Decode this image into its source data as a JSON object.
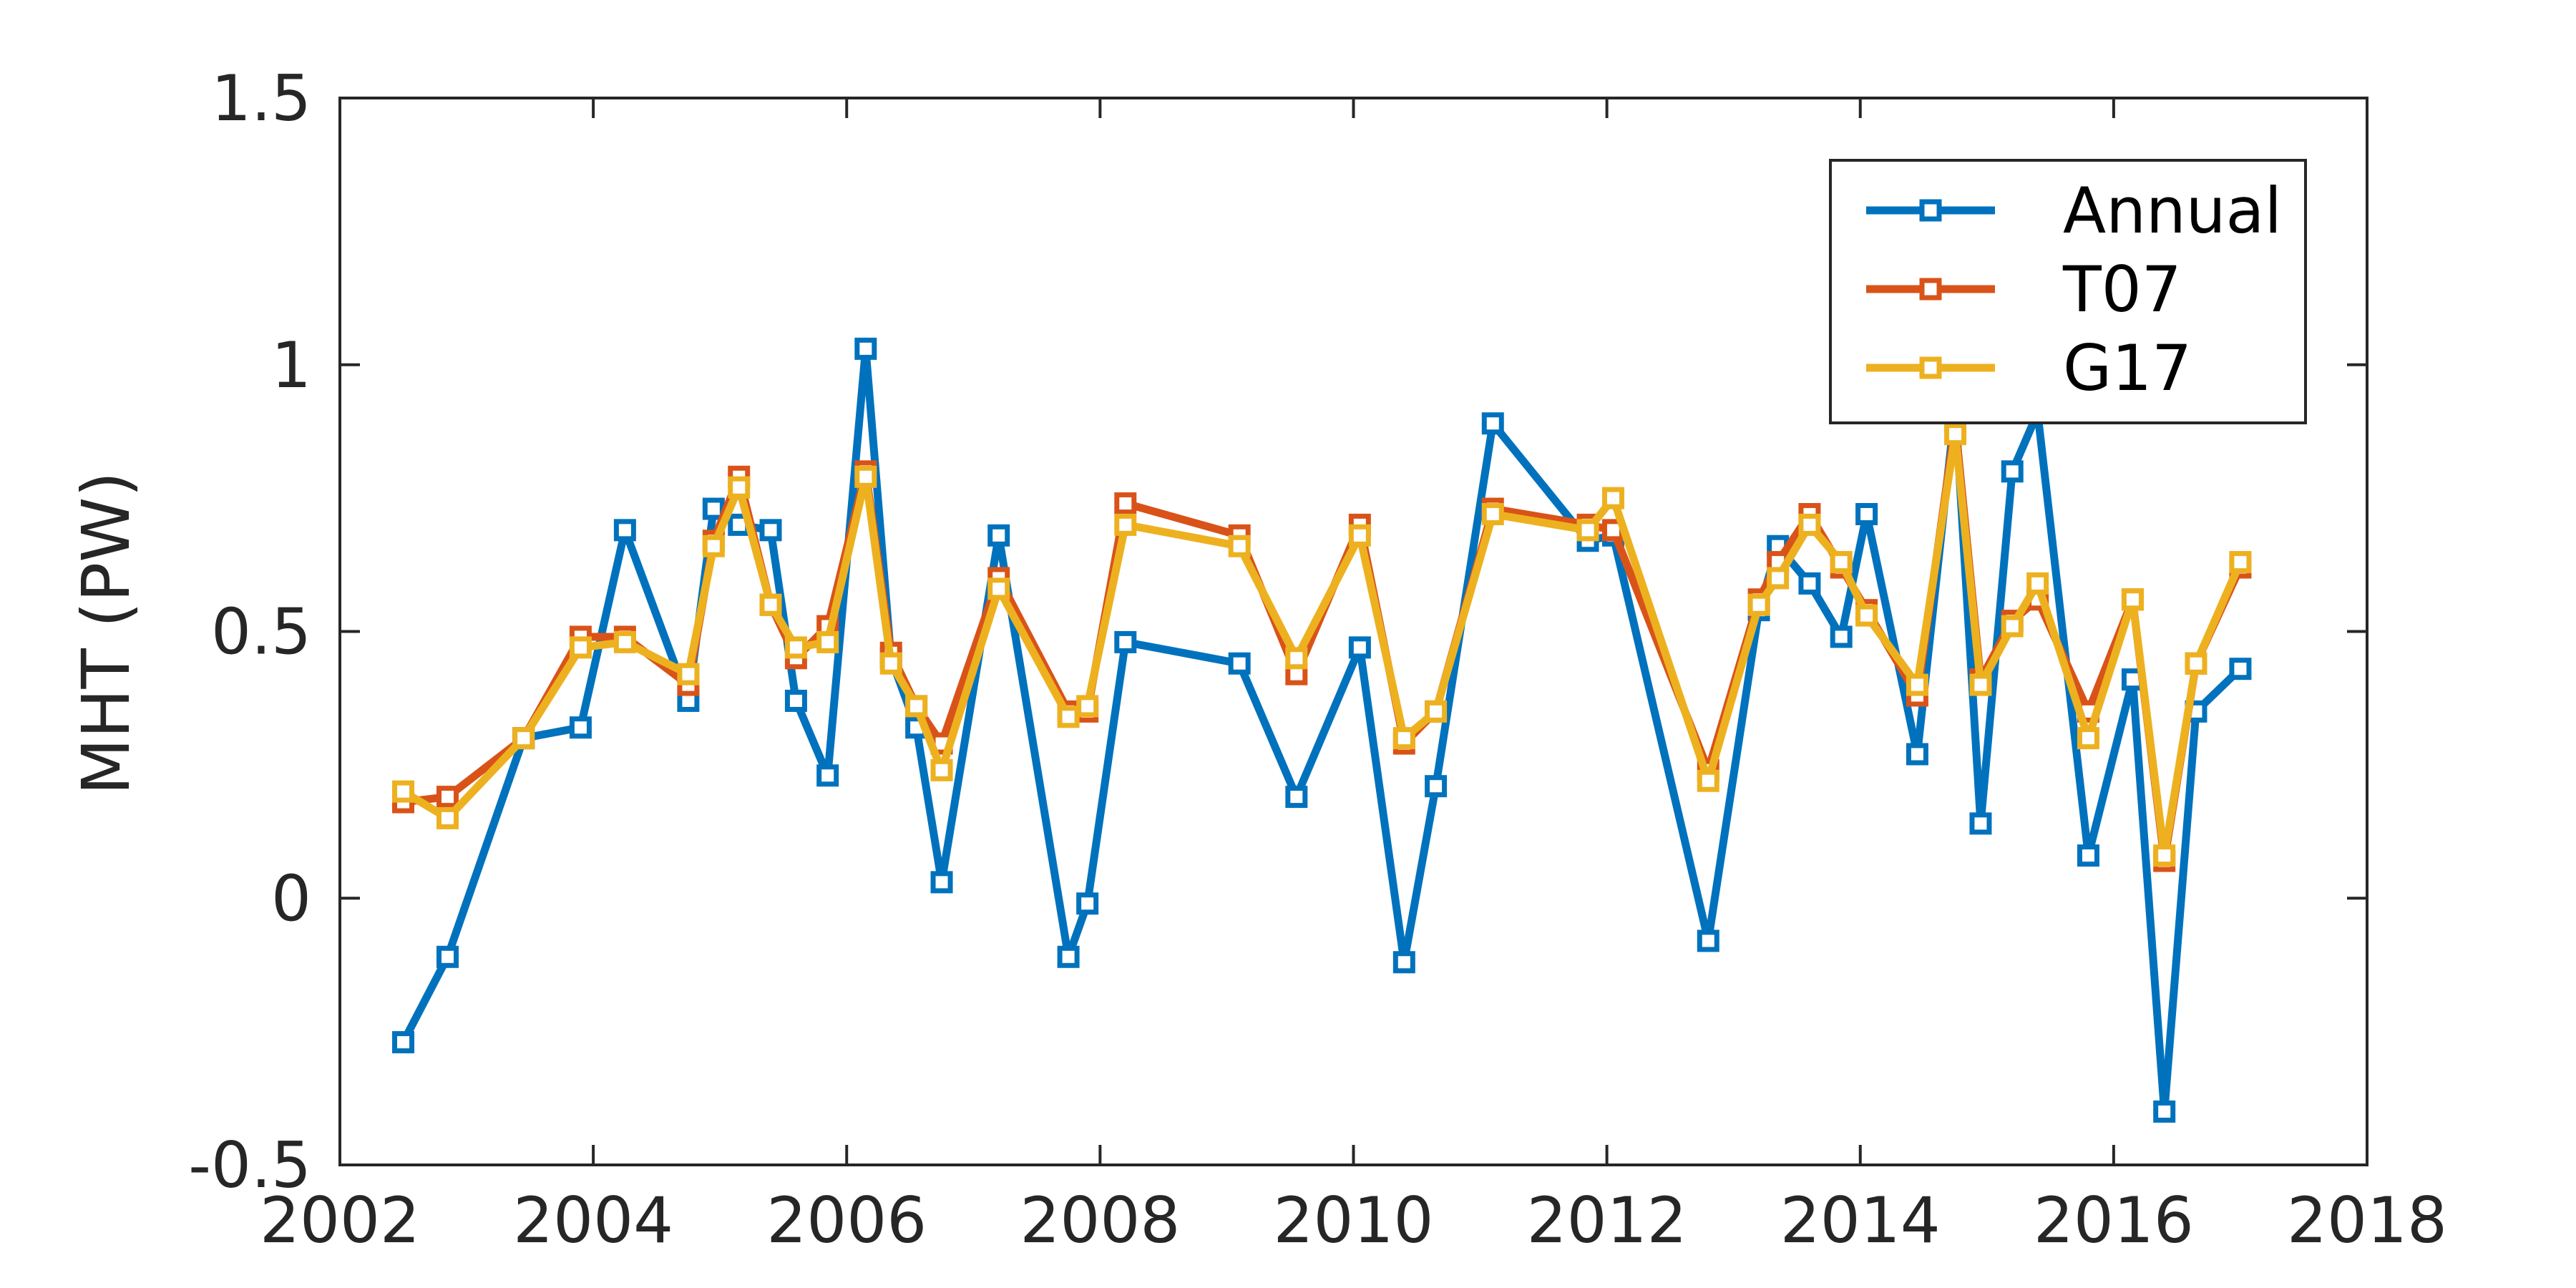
{
  "chart_data": {
    "type": "line",
    "title": "",
    "xlabel": "",
    "ylabel": "MHT (PW)",
    "xlim": [
      2002,
      2018
    ],
    "ylim": [
      -0.5,
      1.5
    ],
    "xticks": [
      "2002",
      "2004",
      "2006",
      "2008",
      "2010",
      "2012",
      "2014",
      "2016",
      "2018"
    ],
    "yticks": [
      "1.5",
      "1",
      "0.5",
      "0",
      "-0.5"
    ],
    "legend_position": "top-right",
    "grid": false,
    "series": [
      {
        "name": "Annual",
        "color": "#0072BD",
        "x": [
          2002.5,
          2002.85,
          2003.45,
          2003.9,
          2004.25,
          2004.75,
          2004.95,
          2005.15,
          2005.4,
          2005.6,
          2005.85,
          2006.15,
          2006.35,
          2006.55,
          2006.75,
          2007.2,
          2007.75,
          2007.9,
          2008.2,
          2009.1,
          2009.55,
          2010.05,
          2010.4,
          2010.65,
          2011.1,
          2011.85,
          2012.05,
          2012.8,
          2013.2,
          2013.35,
          2013.6,
          2013.85,
          2014.05,
          2014.45,
          2014.75,
          2014.95,
          2015.2,
          2015.4,
          2015.8,
          2016.15,
          2016.4,
          2016.65,
          2017.0
        ],
        "y": [
          -0.27,
          -0.11,
          0.3,
          0.32,
          0.69,
          0.37,
          0.73,
          0.7,
          0.69,
          0.37,
          0.23,
          1.03,
          0.45,
          0.32,
          0.03,
          0.68,
          -0.11,
          -0.01,
          0.48,
          0.44,
          0.19,
          0.47,
          -0.12,
          0.21,
          0.89,
          0.67,
          0.68,
          -0.08,
          0.54,
          0.66,
          0.59,
          0.49,
          0.72,
          0.27,
          0.92,
          0.14,
          0.8,
          0.91,
          0.08,
          0.41,
          -0.4,
          0.35,
          0.43
        ]
      },
      {
        "name": "T07",
        "color": "#D95319",
        "x": [
          2002.5,
          2002.85,
          2003.45,
          2003.9,
          2004.25,
          2004.75,
          2004.95,
          2005.15,
          2005.4,
          2005.6,
          2005.85,
          2006.15,
          2006.35,
          2006.55,
          2006.75,
          2007.2,
          2007.75,
          2007.9,
          2008.2,
          2009.1,
          2009.55,
          2010.05,
          2010.4,
          2010.65,
          2011.1,
          2011.85,
          2012.05,
          2012.8,
          2013.2,
          2013.35,
          2013.6,
          2013.85,
          2014.05,
          2014.45,
          2014.75,
          2014.95,
          2015.2,
          2015.4,
          2015.8,
          2016.15,
          2016.4,
          2016.65,
          2017.0
        ],
        "y": [
          0.18,
          0.19,
          0.3,
          0.49,
          0.49,
          0.4,
          0.67,
          0.79,
          0.55,
          0.45,
          0.51,
          0.8,
          0.46,
          0.36,
          0.29,
          0.6,
          0.35,
          0.35,
          0.74,
          0.68,
          0.42,
          0.7,
          0.29,
          0.35,
          0.73,
          0.7,
          0.69,
          0.24,
          0.56,
          0.63,
          0.72,
          0.62,
          0.54,
          0.38,
          0.89,
          0.41,
          0.52,
          0.56,
          0.35,
          0.56,
          0.07,
          0.44,
          0.62
        ]
      },
      {
        "name": "G17",
        "color": "#EDB120",
        "x": [
          2002.5,
          2002.85,
          2003.45,
          2003.9,
          2004.25,
          2004.75,
          2004.95,
          2005.15,
          2005.4,
          2005.6,
          2005.85,
          2006.15,
          2006.35,
          2006.55,
          2006.75,
          2007.2,
          2007.75,
          2007.9,
          2008.2,
          2009.1,
          2009.55,
          2010.05,
          2010.4,
          2010.65,
          2011.1,
          2011.85,
          2012.05,
          2012.8,
          2013.2,
          2013.35,
          2013.6,
          2013.85,
          2014.05,
          2014.45,
          2014.75,
          2014.95,
          2015.2,
          2015.4,
          2015.8,
          2016.15,
          2016.4,
          2016.65,
          2017.0
        ],
        "y": [
          0.2,
          0.15,
          0.3,
          0.47,
          0.48,
          0.42,
          0.66,
          0.77,
          0.55,
          0.47,
          0.48,
          0.79,
          0.44,
          0.36,
          0.24,
          0.58,
          0.34,
          0.36,
          0.7,
          0.66,
          0.45,
          0.68,
          0.3,
          0.35,
          0.72,
          0.69,
          0.75,
          0.22,
          0.55,
          0.6,
          0.7,
          0.63,
          0.53,
          0.4,
          0.87,
          0.4,
          0.51,
          0.59,
          0.3,
          0.56,
          0.08,
          0.44,
          0.63
        ]
      }
    ]
  }
}
